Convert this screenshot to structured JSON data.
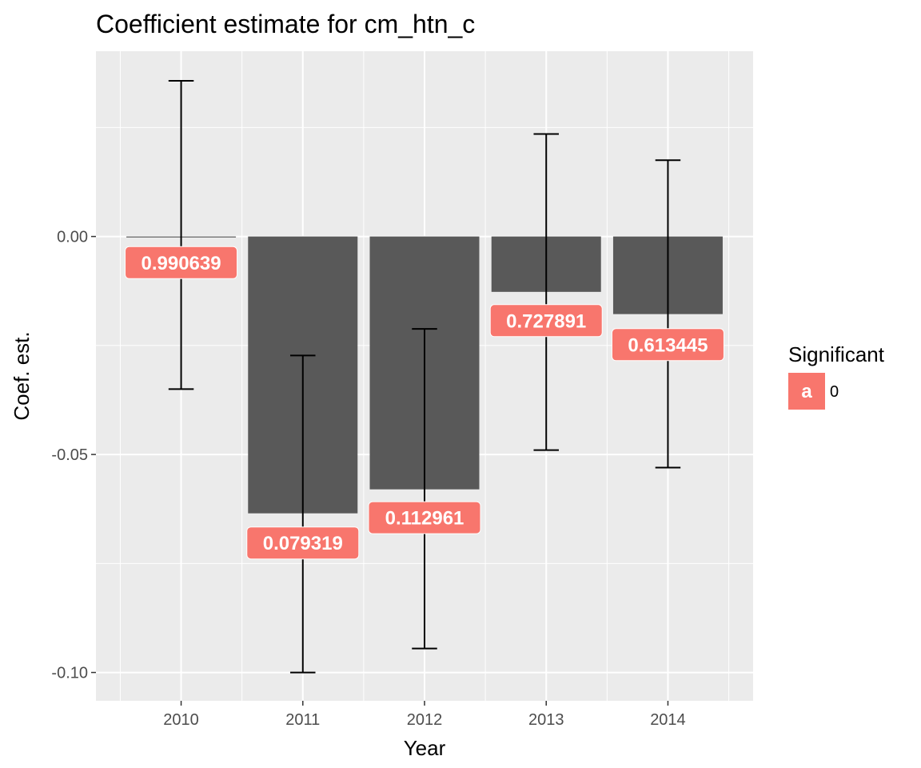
{
  "chart_data": {
    "type": "bar",
    "title": "Coefficient estimate for cm_htn_c",
    "xlabel": "Year",
    "ylabel": "Coef. est.",
    "categories": [
      "2010",
      "2011",
      "2012",
      "2013",
      "2014"
    ],
    "values": [
      0.0,
      -0.0635,
      -0.058,
      -0.0127,
      -0.0178
    ],
    "error_low": [
      -0.035,
      -0.1,
      -0.0945,
      -0.049,
      -0.053
    ],
    "error_high": [
      0.0357,
      -0.0273,
      -0.0212,
      0.0235,
      0.0175
    ],
    "labels": [
      "0.990639",
      "0.079319",
      "0.112961",
      "0.727891",
      "0.613445"
    ],
    "label_y": [
      -0.006,
      -0.0703,
      -0.0645,
      -0.0193,
      -0.0248
    ],
    "ylim": [
      -0.1065,
      0.0425
    ],
    "yticks": [
      0.0,
      -0.05,
      -0.1
    ],
    "ytick_labels": [
      "0.00",
      "-0.05",
      "-0.10"
    ],
    "grid": true,
    "legend": {
      "title": "Significant",
      "position": "right",
      "entries": [
        {
          "key": "a",
          "label": "0"
        }
      ]
    },
    "colors": {
      "bar": "#595959",
      "label_fill": "#F8766D",
      "panel": "#EBEBEB",
      "grid": "#FFFFFF",
      "errorbar": "#000000"
    }
  }
}
